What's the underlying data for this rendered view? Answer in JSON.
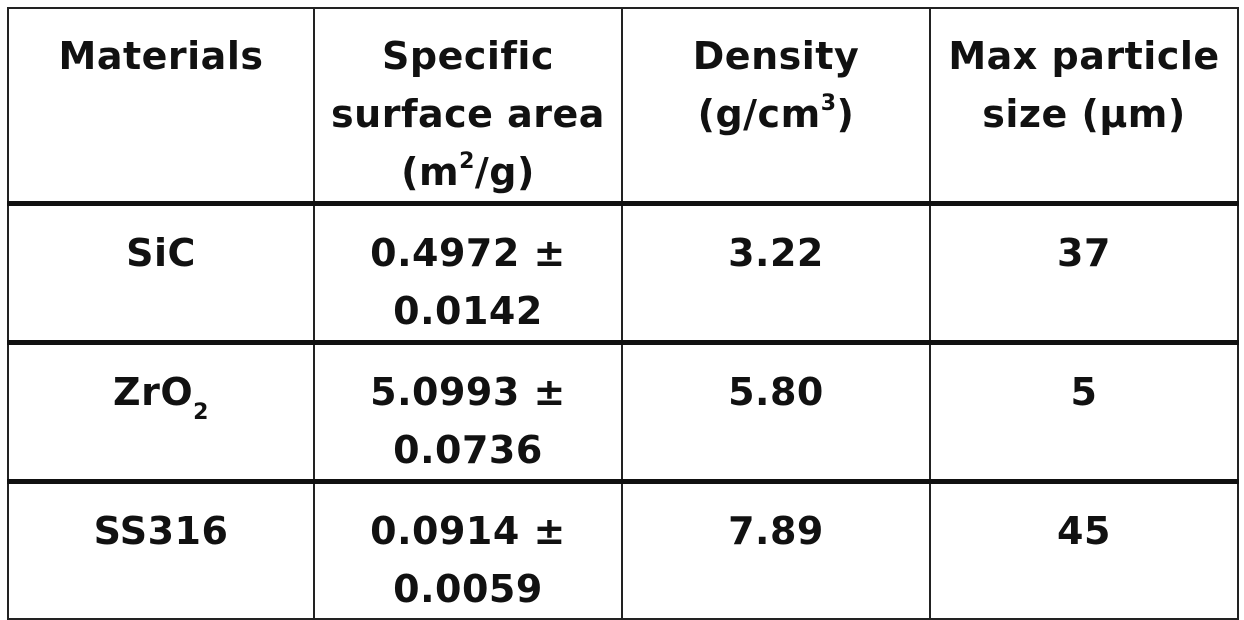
{
  "table": {
    "headers": {
      "materials": "Materials",
      "ssa_line1": "Specific",
      "ssa_line2": "surface area",
      "ssa_unit_pre": "(m",
      "ssa_unit_sup": "2",
      "ssa_unit_post": "/g)",
      "density_line1": "Density",
      "density_unit_pre": "(g/cm",
      "density_unit_sup": "3",
      "density_unit_post": ")",
      "maxsize_line1": "Max particle",
      "maxsize_line2": "size (µm)"
    },
    "rows": [
      {
        "material": "SiC",
        "material_sub": "",
        "ssa_line1": "0.4972 ±",
        "ssa_line2": "0.0142",
        "density": "3.22",
        "max_size": "37"
      },
      {
        "material": "ZrO",
        "material_sub": "2",
        "ssa_line1": "5.0993 ±",
        "ssa_line2": "0.0736",
        "density": "5.80",
        "max_size": "5"
      },
      {
        "material": "SS316",
        "material_sub": "",
        "ssa_line1": "0.0914 ±",
        "ssa_line2": "0.0059",
        "density": "7.89",
        "max_size": "45"
      }
    ]
  }
}
